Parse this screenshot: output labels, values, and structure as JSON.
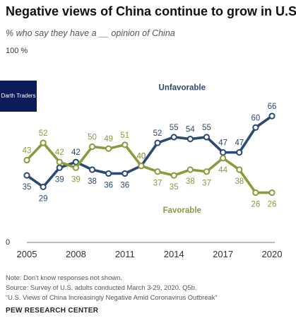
{
  "header": {
    "title": "Negative views of China continue to grow in U.S.",
    "subtitle": "% who say they have a __ opinion of China"
  },
  "badge": {
    "label": "Darth Traders"
  },
  "chart_data": {
    "type": "line",
    "x": [
      2005,
      2006,
      2007,
      2008,
      2009,
      2010,
      2011,
      2012,
      2013,
      2014,
      2015,
      2016,
      2017,
      2018,
      2019,
      2020
    ],
    "series": [
      {
        "name": "Unfavorable",
        "color": "#2a4a73",
        "values": [
          35,
          29,
          39,
          42,
          38,
          36,
          36,
          40,
          52,
          55,
          54,
          55,
          47,
          47,
          60,
          66
        ]
      },
      {
        "name": "Favorable",
        "color": "#8c9a3c",
        "values": [
          43,
          52,
          42,
          39,
          50,
          49,
          51,
          40,
          37,
          35,
          38,
          37,
          44,
          38,
          26,
          26
        ]
      }
    ],
    "xticks": [
      "2005",
      "2008",
      "2011",
      "2014",
      "2017",
      "2020"
    ],
    "ytick_labels": {
      "top": "100 %",
      "bottom": "0"
    },
    "ylim": [
      0,
      100
    ],
    "xlim": [
      2005,
      2020
    ]
  },
  "footer": {
    "note": "Note: Don't know responses not shown.",
    "source": "Source: Survey of U.S. adults conducted March 3-29, 2020. Q5b.",
    "report": "“U.S. Views of China Increasingly Negative Amid Coronavirus Outbreak”",
    "org": "PEW RESEARCH CENTER"
  }
}
